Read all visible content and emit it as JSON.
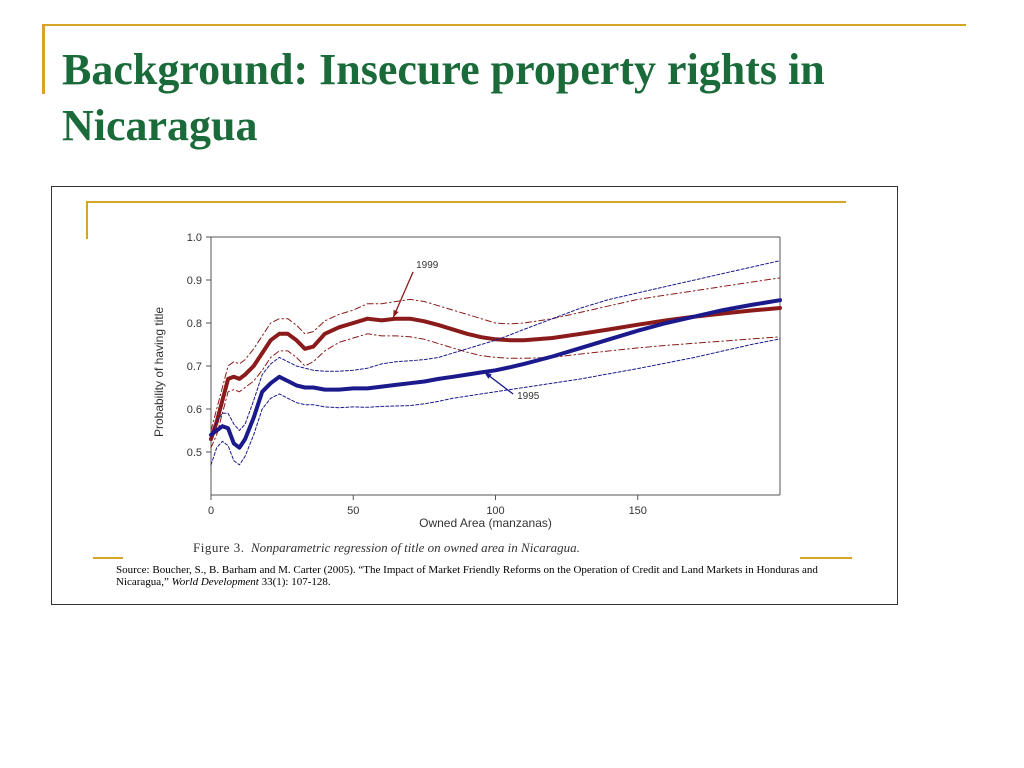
{
  "slide": {
    "title": "Background:  Insecure property rights in Nicaragua"
  },
  "figure": {
    "caption_label": "Figure 3.",
    "caption_text": "Nonparametric regression of title on owned area in Nicaragua.",
    "source_prefix": "Source: Boucher, S., B. Barham and M. Carter (2005). “The Impact of Market Friendly Reforms on the Operation of Credit and Land Markets in Honduras and Nicaragua,” ",
    "source_journal": "World Development",
    "source_suffix": " 33(1): 107-128."
  },
  "colors": {
    "accent": "#d4a52a",
    "title": "#1b6b3a",
    "series_1999": "#8b1a1a",
    "series_1995": "#1a1a8c"
  },
  "chart_data": {
    "type": "line",
    "xlabel": "Owned Area (manzanas)",
    "ylabel": "Probability of having title",
    "xlim": [
      0,
      200
    ],
    "ylim": [
      0.4,
      1.0
    ],
    "xticks": [
      0,
      50,
      100,
      150
    ],
    "yticks": [
      0.5,
      0.6,
      0.7,
      0.8,
      0.9,
      1.0
    ],
    "grid": false,
    "series": [
      {
        "name": "1999",
        "style": "solid",
        "x": [
          0,
          2,
          4,
          6,
          8,
          10,
          12,
          15,
          18,
          21,
          24,
          27,
          30,
          33,
          36,
          40,
          45,
          50,
          55,
          60,
          65,
          70,
          75,
          80,
          85,
          90,
          95,
          100,
          105,
          110,
          120,
          130,
          140,
          150,
          160,
          170,
          180,
          190,
          200
        ],
        "y": [
          0.53,
          0.57,
          0.62,
          0.67,
          0.675,
          0.67,
          0.68,
          0.7,
          0.73,
          0.76,
          0.775,
          0.775,
          0.76,
          0.74,
          0.745,
          0.775,
          0.79,
          0.8,
          0.81,
          0.806,
          0.81,
          0.81,
          0.804,
          0.795,
          0.785,
          0.775,
          0.767,
          0.762,
          0.76,
          0.76,
          0.765,
          0.775,
          0.785,
          0.796,
          0.806,
          0.815,
          0.822,
          0.829,
          0.835
        ]
      },
      {
        "name": "",
        "style": "dashdot",
        "x": [
          0,
          2,
          4,
          6,
          8,
          10,
          12,
          15,
          18,
          21,
          24,
          27,
          30,
          33,
          36,
          40,
          45,
          50,
          55,
          60,
          65,
          70,
          75,
          80,
          85,
          90,
          95,
          100,
          105,
          110,
          120,
          130,
          140,
          150,
          160,
          170,
          180,
          190,
          200
        ],
        "y": [
          0.55,
          0.6,
          0.65,
          0.7,
          0.71,
          0.705,
          0.715,
          0.74,
          0.77,
          0.8,
          0.81,
          0.81,
          0.795,
          0.775,
          0.78,
          0.805,
          0.82,
          0.83,
          0.845,
          0.845,
          0.85,
          0.855,
          0.85,
          0.84,
          0.83,
          0.82,
          0.81,
          0.8,
          0.798,
          0.8,
          0.81,
          0.825,
          0.84,
          0.855,
          0.865,
          0.875,
          0.885,
          0.895,
          0.905
        ]
      },
      {
        "name": "",
        "style": "dashdot",
        "x": [
          0,
          2,
          4,
          6,
          8,
          10,
          12,
          15,
          18,
          21,
          24,
          27,
          30,
          33,
          36,
          40,
          45,
          50,
          55,
          60,
          65,
          70,
          75,
          80,
          85,
          90,
          95,
          100,
          105,
          110,
          120,
          130,
          140,
          150,
          160,
          170,
          180,
          190,
          200
        ],
        "y": [
          0.51,
          0.54,
          0.59,
          0.64,
          0.645,
          0.64,
          0.65,
          0.665,
          0.69,
          0.72,
          0.735,
          0.735,
          0.72,
          0.7,
          0.71,
          0.735,
          0.755,
          0.765,
          0.775,
          0.77,
          0.77,
          0.768,
          0.762,
          0.752,
          0.742,
          0.732,
          0.724,
          0.72,
          0.718,
          0.718,
          0.72,
          0.728,
          0.735,
          0.742,
          0.748,
          0.753,
          0.758,
          0.763,
          0.768
        ]
      },
      {
        "name": "1995",
        "style": "solid",
        "x": [
          0,
          2,
          4,
          6,
          8,
          10,
          12,
          15,
          18,
          21,
          24,
          27,
          30,
          33,
          36,
          40,
          45,
          50,
          55,
          60,
          65,
          70,
          75,
          80,
          85,
          90,
          95,
          100,
          105,
          110,
          120,
          130,
          140,
          150,
          160,
          170,
          180,
          190,
          200
        ],
        "y": [
          0.54,
          0.55,
          0.56,
          0.555,
          0.52,
          0.51,
          0.53,
          0.58,
          0.64,
          0.66,
          0.675,
          0.665,
          0.655,
          0.65,
          0.65,
          0.645,
          0.645,
          0.648,
          0.648,
          0.652,
          0.656,
          0.66,
          0.664,
          0.67,
          0.675,
          0.68,
          0.685,
          0.69,
          0.697,
          0.705,
          0.722,
          0.742,
          0.762,
          0.782,
          0.8,
          0.815,
          0.83,
          0.842,
          0.853
        ]
      },
      {
        "name": "",
        "style": "dashed",
        "x": [
          0,
          2,
          4,
          6,
          8,
          10,
          12,
          15,
          18,
          21,
          24,
          27,
          30,
          33,
          36,
          40,
          45,
          50,
          55,
          60,
          65,
          70,
          75,
          80,
          85,
          90,
          95,
          100,
          105,
          110,
          120,
          130,
          140,
          150,
          160,
          170,
          180,
          190,
          200
        ],
        "y": [
          0.54,
          0.57,
          0.59,
          0.59,
          0.565,
          0.55,
          0.565,
          0.62,
          0.68,
          0.705,
          0.72,
          0.71,
          0.7,
          0.695,
          0.69,
          0.688,
          0.688,
          0.69,
          0.695,
          0.705,
          0.71,
          0.712,
          0.715,
          0.72,
          0.73,
          0.74,
          0.75,
          0.76,
          0.772,
          0.785,
          0.81,
          0.835,
          0.855,
          0.87,
          0.885,
          0.9,
          0.915,
          0.93,
          0.945
        ]
      },
      {
        "name": "",
        "style": "dashed",
        "x": [
          0,
          2,
          4,
          6,
          8,
          10,
          12,
          15,
          18,
          21,
          24,
          27,
          30,
          33,
          36,
          40,
          45,
          50,
          55,
          60,
          65,
          70,
          75,
          80,
          85,
          90,
          95,
          100,
          105,
          110,
          120,
          130,
          140,
          150,
          160,
          170,
          180,
          190,
          200
        ],
        "y": [
          0.47,
          0.51,
          0.525,
          0.515,
          0.48,
          0.47,
          0.49,
          0.54,
          0.6,
          0.625,
          0.635,
          0.625,
          0.615,
          0.61,
          0.61,
          0.605,
          0.603,
          0.605,
          0.604,
          0.606,
          0.607,
          0.608,
          0.612,
          0.618,
          0.625,
          0.63,
          0.635,
          0.64,
          0.645,
          0.65,
          0.66,
          0.67,
          0.682,
          0.694,
          0.707,
          0.72,
          0.735,
          0.75,
          0.763
        ]
      }
    ],
    "annotations": [
      {
        "text": "1999",
        "series": "1999",
        "x": 64,
        "y": 0.812
      },
      {
        "text": "1995",
        "series": "1995",
        "x": 96,
        "y": 0.686
      }
    ]
  }
}
